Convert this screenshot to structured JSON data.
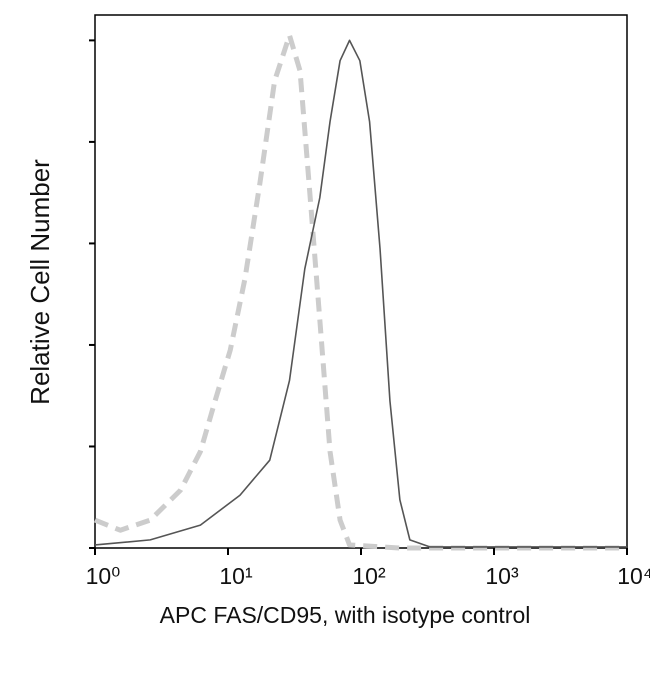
{
  "chart_data": {
    "type": "line",
    "xlabel": "APC FAS/CD95, with isotype control",
    "ylabel": "Relative Cell Number",
    "xscale": "log",
    "xlim": [
      1,
      10000
    ],
    "xticks": [
      {
        "value": 1,
        "label": "10⁰"
      },
      {
        "value": 10,
        "label": "10¹"
      },
      {
        "value": 100,
        "label": "10²"
      },
      {
        "value": 1000,
        "label": "10³"
      },
      {
        "value": 10000,
        "label": "10⁴"
      }
    ],
    "ylim": [
      0,
      105
    ],
    "yticks": [
      0,
      20,
      40,
      60,
      80,
      100
    ],
    "series": [
      {
        "color": "#cccccc",
        "dashed": true,
        "x": [
          1,
          1.55,
          2.6,
          4.4,
          6.2,
          8,
          10.4,
          13.4,
          17.4,
          22.4,
          29,
          34.8,
          41.5,
          49,
          58.5,
          69.6,
          82,
          196,
          10000
        ],
        "values": [
          5.5,
          3.5,
          5.5,
          11.4,
          19,
          29,
          39,
          53,
          72,
          92,
          101,
          94,
          69,
          45,
          19,
          5.5,
          0.6,
          0,
          0
        ]
      },
      {
        "color": "#555555",
        "dashed": false,
        "x": [
          1,
          2.6,
          6.2,
          12.3,
          20.6,
          29,
          37.8,
          49,
          58.5,
          69.6,
          82,
          98,
          116,
          139,
          165,
          196,
          233,
          331,
          10000
        ],
        "values": [
          0.6,
          1.6,
          4.5,
          10.4,
          17.3,
          33,
          55,
          69,
          84,
          96,
          100,
          96,
          84,
          59,
          29,
          9.5,
          1.6,
          0.2,
          0.2
        ]
      }
    ]
  }
}
